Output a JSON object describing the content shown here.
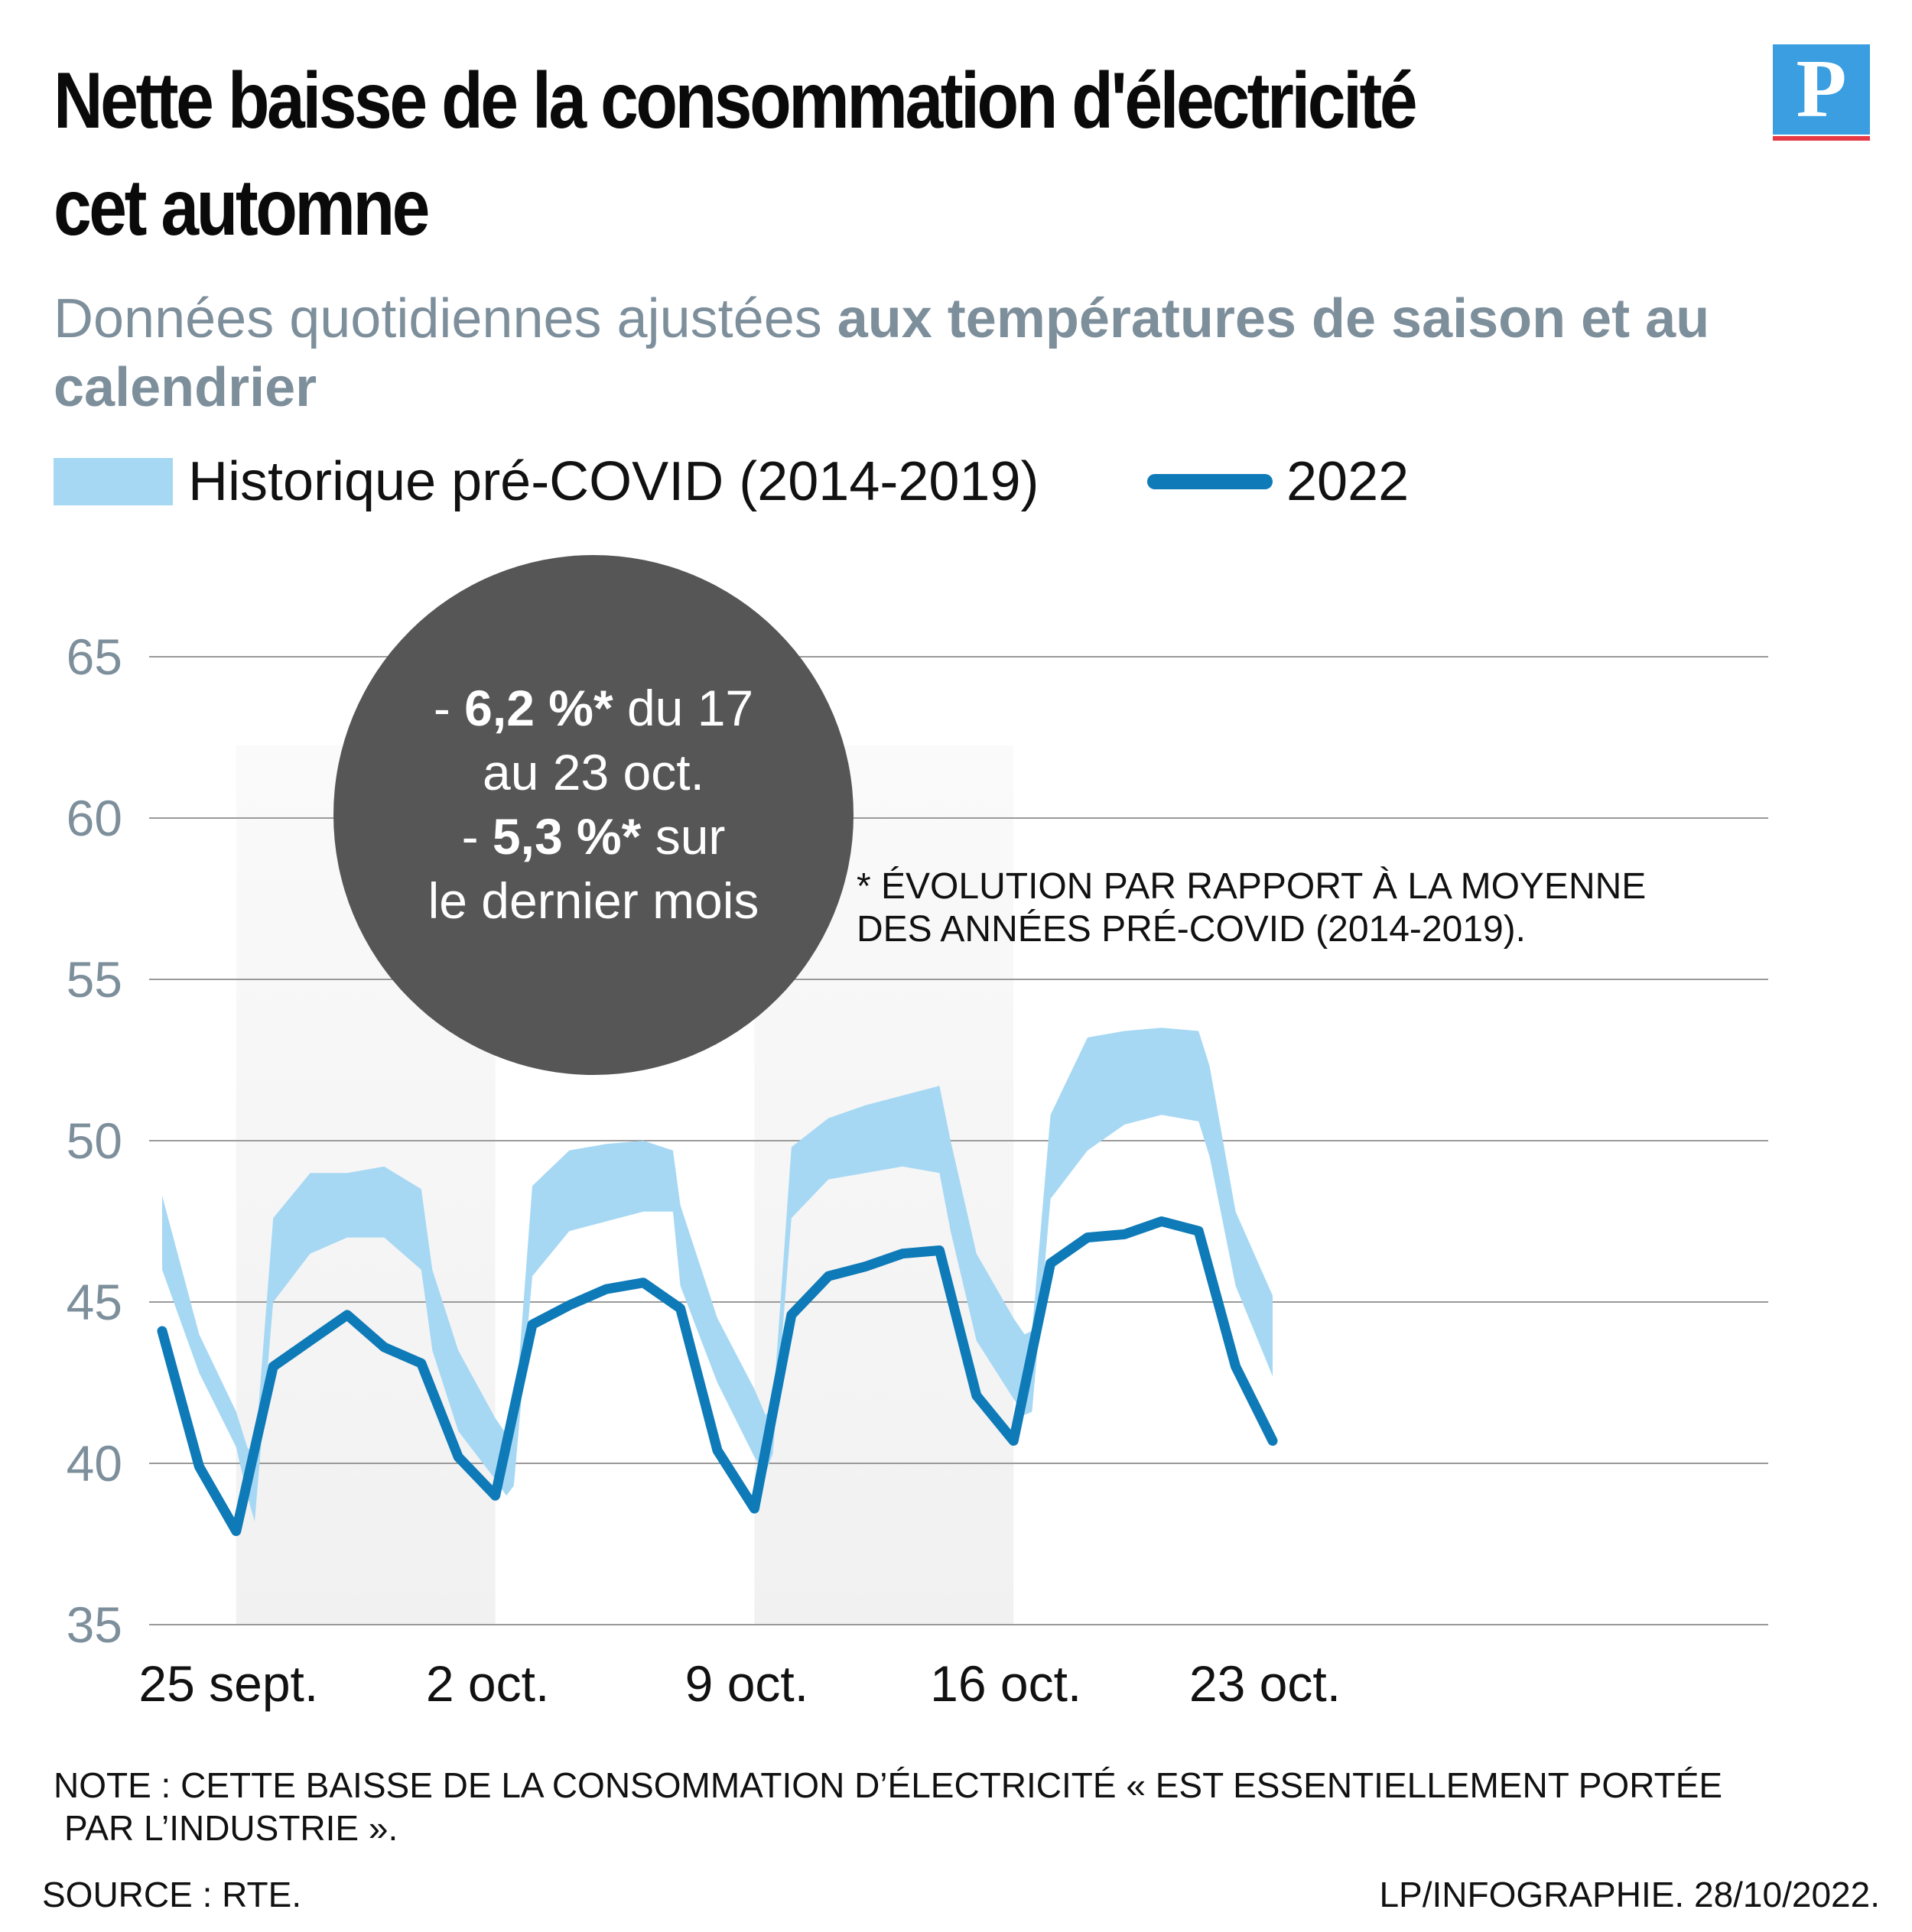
{
  "header": {
    "title": "Nette baisse de la consommation d'électricité cet automne",
    "subtitle_plain": "Données quotidiennes ajustées ",
    "subtitle_bold": "aux températures de saison et au calendrier",
    "logo_letter": "P"
  },
  "legend": {
    "band_label": "Historique pré-COVID (2014-2019)",
    "line_label": "2022"
  },
  "callout": {
    "line1_prefix": "- ",
    "line1_bold": "6,2 %*",
    "line1_suffix": " du 17",
    "line2": "au 23 oct.",
    "line3_prefix": "- ",
    "line3_bold": "5,3 %*",
    "line3_suffix": " sur",
    "line4": "le dernier mois"
  },
  "footnote": {
    "line1": "* ÉVOLUTION PAR RAPPORT À LA MOYENNE",
    "line2": "DES ANNÉES PRÉ-COVID (2014-2019)."
  },
  "note": {
    "line1": "NOTE : CETTE BAISSE DE LA CONSOMMATION D’ÉLECTRICITÉ « EST ESSENTIELLEMENT PORTÉE",
    "line2": "PAR L’INDUSTRIE »."
  },
  "source": "SOURCE : RTE.",
  "credit": "LP/INFOGRAPHIE.  28/10/2022.",
  "colors": {
    "band": "#a6d8f4",
    "line": "#0e7ab8",
    "weekend_shade": "#f1f1f1",
    "bubble": "#575656",
    "grid": "#9a9a9a",
    "axis_label": "#7e8f9c",
    "logo": "#3a9ee0",
    "logo_underline": "#e63946"
  },
  "chart_data": {
    "type": "area",
    "y_ticks": [
      35,
      40,
      45,
      50,
      55,
      60,
      65
    ],
    "y_range": [
      35,
      65
    ],
    "x_range": [
      0,
      29
    ],
    "x_tick_labels": [
      {
        "x": 3,
        "label": "25 sept."
      },
      {
        "x": 10,
        "label": "2 oct."
      },
      {
        "x": 17,
        "label": "9 oct."
      },
      {
        "x": 24,
        "label": "16 oct."
      },
      {
        "x": 31,
        "label": "23 oct."
      }
    ],
    "shaded_ranges": [
      [
        3,
        10
      ],
      [
        17,
        24
      ]
    ],
    "band": {
      "name": "Historique pré-COVID (2014-2019)",
      "x": [
        1,
        2,
        3,
        3.3,
        3.5,
        4,
        5,
        6,
        7,
        8,
        8.3,
        9,
        10,
        10.3,
        10.5,
        11,
        12,
        13,
        14,
        14.8,
        15,
        16,
        17,
        17.3,
        17.5,
        18,
        19,
        20,
        21,
        22,
        22.3,
        23,
        24,
        24.3,
        24.5,
        25,
        26,
        27,
        28,
        29,
        29.3,
        30,
        31
      ],
      "lower": [
        46.0,
        42.8,
        40.5,
        39.0,
        38.2,
        45.0,
        46.5,
        47.0,
        47.0,
        46.0,
        43.5,
        41.0,
        39.5,
        39.0,
        39.3,
        45.8,
        47.2,
        47.5,
        47.8,
        47.8,
        45.5,
        42.5,
        40.2,
        39.7,
        40.3,
        47.6,
        48.8,
        49.0,
        49.2,
        49.0,
        47.2,
        43.8,
        42.0,
        41.5,
        41.6,
        48.2,
        49.7,
        50.5,
        50.8,
        50.6,
        49.5,
        45.5,
        42.7
      ],
      "upper": [
        48.3,
        44.0,
        41.6,
        40.5,
        40.2,
        47.6,
        49.0,
        49.0,
        49.2,
        48.5,
        46.0,
        43.5,
        41.4,
        40.9,
        41.0,
        48.6,
        49.7,
        49.9,
        50.0,
        49.7,
        48.0,
        44.5,
        42.3,
        41.5,
        41.7,
        49.8,
        50.7,
        51.1,
        51.4,
        51.7,
        50.0,
        46.5,
        44.5,
        44.0,
        44.1,
        50.8,
        53.2,
        53.4,
        53.5,
        53.4,
        52.3,
        47.8,
        45.2
      ]
    },
    "series": [
      {
        "name": "2022",
        "x": [
          1,
          2,
          3,
          4,
          5,
          6,
          7,
          8,
          9,
          10,
          11,
          12,
          13,
          14,
          15,
          16,
          17,
          18,
          19,
          20,
          21,
          22,
          23,
          24,
          25,
          26,
          27,
          28,
          29,
          30,
          31
        ],
        "values": [
          44.1,
          39.9,
          37.9,
          43.0,
          43.8,
          44.6,
          43.6,
          43.1,
          40.2,
          39.0,
          44.3,
          44.9,
          45.4,
          45.6,
          44.8,
          40.4,
          38.6,
          44.6,
          45.8,
          46.1,
          46.5,
          46.6,
          42.1,
          40.7,
          46.2,
          47.0,
          47.1,
          47.5,
          47.2,
          43.0,
          40.7
        ]
      }
    ]
  }
}
